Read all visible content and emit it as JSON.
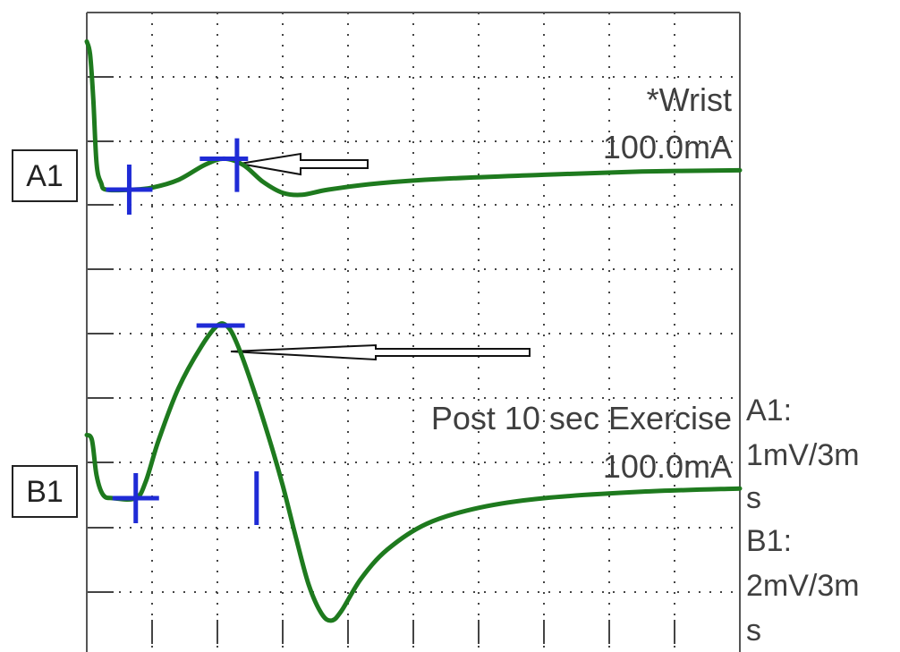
{
  "colors": {
    "trace": "#1e7a1e",
    "marker": "#1f2bd6",
    "grid": "#444444",
    "frame": "#555555",
    "arrow_fill": "#ffffff",
    "arrow_stroke": "#111111"
  },
  "traces": {
    "a1": {
      "label": "A1",
      "note_line1": "*Wrist",
      "note_line2": "100.0mA"
    },
    "b1": {
      "label": "B1",
      "note_line1": "Post 10 sec Exercise",
      "note_line2": "100.0mA"
    }
  },
  "scale_legend": {
    "a1_name": "A1:",
    "a1_value_line1": "1mV/3m",
    "a1_value_line2": "s",
    "b1_name": "B1:",
    "b1_value_line1": "2mV/3m",
    "b1_value_line2": "s"
  },
  "chart_data": {
    "type": "line",
    "title": "",
    "xlabel": "",
    "ylabel": "",
    "grid": true,
    "x_divisions": 10,
    "x_units_per_division_ms": 3,
    "xlim_ms": [
      0,
      30
    ],
    "series": [
      {
        "name": "A1",
        "sensitivity": "1mV/3ms",
        "baseline_div": 0,
        "y_units": "divisions",
        "points": [
          [
            0.0,
            2.3
          ],
          [
            0.05,
            2.1
          ],
          [
            0.1,
            1.4
          ],
          [
            0.15,
            0.4
          ],
          [
            0.22,
            0.1
          ],
          [
            0.3,
            0.0
          ],
          [
            0.7,
            0.0
          ],
          [
            1.0,
            0.03
          ],
          [
            1.4,
            0.15
          ],
          [
            1.8,
            0.38
          ],
          [
            2.1,
            0.48
          ],
          [
            2.4,
            0.38
          ],
          [
            2.7,
            0.12
          ],
          [
            3.0,
            -0.05
          ],
          [
            3.3,
            -0.08
          ],
          [
            3.7,
            0.0
          ],
          [
            4.5,
            0.1
          ],
          [
            5.5,
            0.17
          ],
          [
            7.0,
            0.23
          ],
          [
            8.5,
            0.28
          ],
          [
            10.0,
            0.3
          ]
        ],
        "markers": [
          {
            "type": "onset",
            "x": 0.65,
            "y": 0.0
          },
          {
            "type": "peak",
            "x": 2.1,
            "y": 0.48
          },
          {
            "type": "end",
            "x": 2.3,
            "y": 0.38
          }
        ]
      },
      {
        "name": "B1",
        "sensitivity": "2mV/3ms",
        "baseline_div": 0,
        "y_units": "divisions",
        "points": [
          [
            0.0,
            0.98
          ],
          [
            0.08,
            0.9
          ],
          [
            0.15,
            0.35
          ],
          [
            0.25,
            0.05
          ],
          [
            0.4,
            0.0
          ],
          [
            0.75,
            0.0
          ],
          [
            0.9,
            0.25
          ],
          [
            1.1,
            0.9
          ],
          [
            1.4,
            1.7
          ],
          [
            1.75,
            2.35
          ],
          [
            2.0,
            2.68
          ],
          [
            2.15,
            2.67
          ],
          [
            2.3,
            2.4
          ],
          [
            2.55,
            1.7
          ],
          [
            2.8,
            0.9
          ],
          [
            3.0,
            0.2
          ],
          [
            3.2,
            -0.6
          ],
          [
            3.4,
            -1.35
          ],
          [
            3.6,
            -1.8
          ],
          [
            3.75,
            -1.9
          ],
          [
            3.9,
            -1.75
          ],
          [
            4.2,
            -1.25
          ],
          [
            4.6,
            -0.8
          ],
          [
            5.2,
            -0.4
          ],
          [
            6.0,
            -0.15
          ],
          [
            7.0,
            0.0
          ],
          [
            8.5,
            0.1
          ],
          [
            10.0,
            0.15
          ]
        ],
        "markers": [
          {
            "type": "onset",
            "x": 0.75,
            "y": 0.0
          },
          {
            "type": "peak",
            "x": 2.05,
            "y": 2.68
          },
          {
            "type": "end",
            "x": 2.6,
            "y": 0.0
          }
        ]
      }
    ]
  }
}
